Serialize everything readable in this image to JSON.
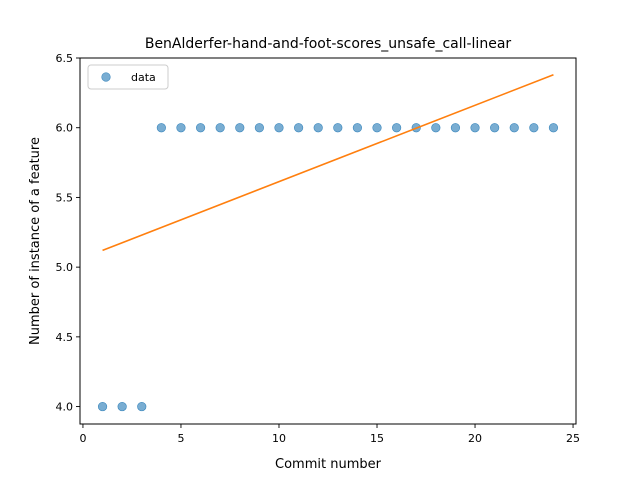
{
  "chart_data": {
    "type": "scatter",
    "title": "BenAlderfer-hand-and-foot-scores_unsafe_call-linear",
    "xlabel": "Commit number",
    "ylabel": "Number of instance of a feature",
    "xlim": [
      -0.15,
      25.15
    ],
    "ylim": [
      3.875,
      6.5
    ],
    "xticks": [
      0,
      5,
      10,
      15,
      20,
      25
    ],
    "yticks": [
      4.0,
      4.5,
      5.0,
      5.5,
      6.0,
      6.5
    ],
    "xtick_labels": [
      "0",
      "5",
      "10",
      "15",
      "20",
      "25"
    ],
    "ytick_labels": [
      "4.0",
      "4.5",
      "5.0",
      "5.5",
      "6.0",
      "6.5"
    ],
    "legend": {
      "position": "top-left",
      "entries": [
        "data"
      ]
    },
    "series": [
      {
        "name": "data",
        "kind": "scatter",
        "color": "#1f77b4",
        "x": [
          1,
          2,
          3,
          4,
          5,
          6,
          7,
          8,
          9,
          10,
          11,
          12,
          13,
          14,
          15,
          16,
          17,
          18,
          19,
          20,
          21,
          22,
          23,
          24
        ],
        "y": [
          4,
          4,
          4,
          6,
          6,
          6,
          6,
          6,
          6,
          6,
          6,
          6,
          6,
          6,
          6,
          6,
          6,
          6,
          6,
          6,
          6,
          6,
          6,
          6
        ]
      },
      {
        "kind": "line",
        "color": "#ff7f0e",
        "x": [
          1,
          24
        ],
        "y": [
          5.12,
          6.38
        ]
      }
    ]
  }
}
